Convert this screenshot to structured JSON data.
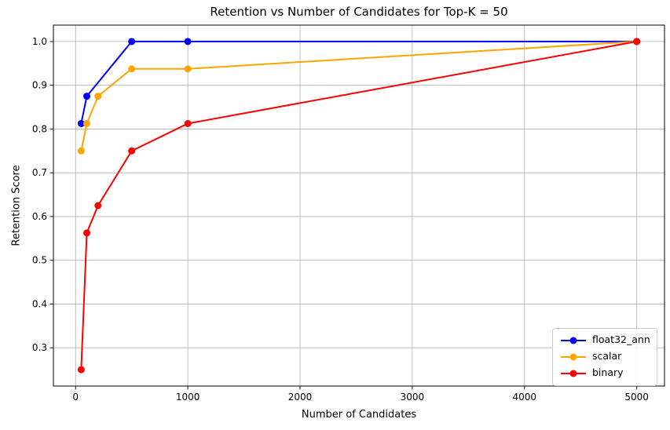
{
  "chart_data": {
    "type": "line",
    "title": "Retention vs Number of Candidates for Top-K = 50",
    "xlabel": "Number of Candidates",
    "ylabel": "Retention Score",
    "grid": true,
    "legend_position": "lower right",
    "xlim": [
      -197.5,
      5247.5
    ],
    "ylim": [
      0.2125,
      1.0375
    ],
    "xticks": [
      0,
      1000,
      2000,
      3000,
      4000,
      5000
    ],
    "xtick_labels": [
      "0",
      "1000",
      "2000",
      "3000",
      "4000",
      "5000"
    ],
    "yticks": [
      0.3,
      0.4,
      0.5,
      0.6,
      0.7,
      0.8,
      0.9,
      1.0
    ],
    "ytick_labels": [
      "0.3",
      "0.4",
      "0.5",
      "0.6",
      "0.7",
      "0.8",
      "0.9",
      "1.0"
    ],
    "series": [
      {
        "name": "float32_ann",
        "color": "#0000ff",
        "x": [
          50,
          100,
          500,
          1000,
          5000
        ],
        "y": [
          0.8125,
          0.875,
          1.0,
          1.0,
          1.0
        ]
      },
      {
        "name": "scalar",
        "color": "#ffa500",
        "x": [
          50,
          100,
          200,
          500,
          1000,
          5000
        ],
        "y": [
          0.75,
          0.8125,
          0.875,
          0.9375,
          0.9375,
          1.0
        ]
      },
      {
        "name": "binary",
        "color": "#ff0000",
        "x": [
          50,
          100,
          200,
          500,
          1000,
          5000
        ],
        "y": [
          0.25,
          0.5625,
          0.625,
          0.75,
          0.8125,
          1.0
        ]
      }
    ]
  }
}
